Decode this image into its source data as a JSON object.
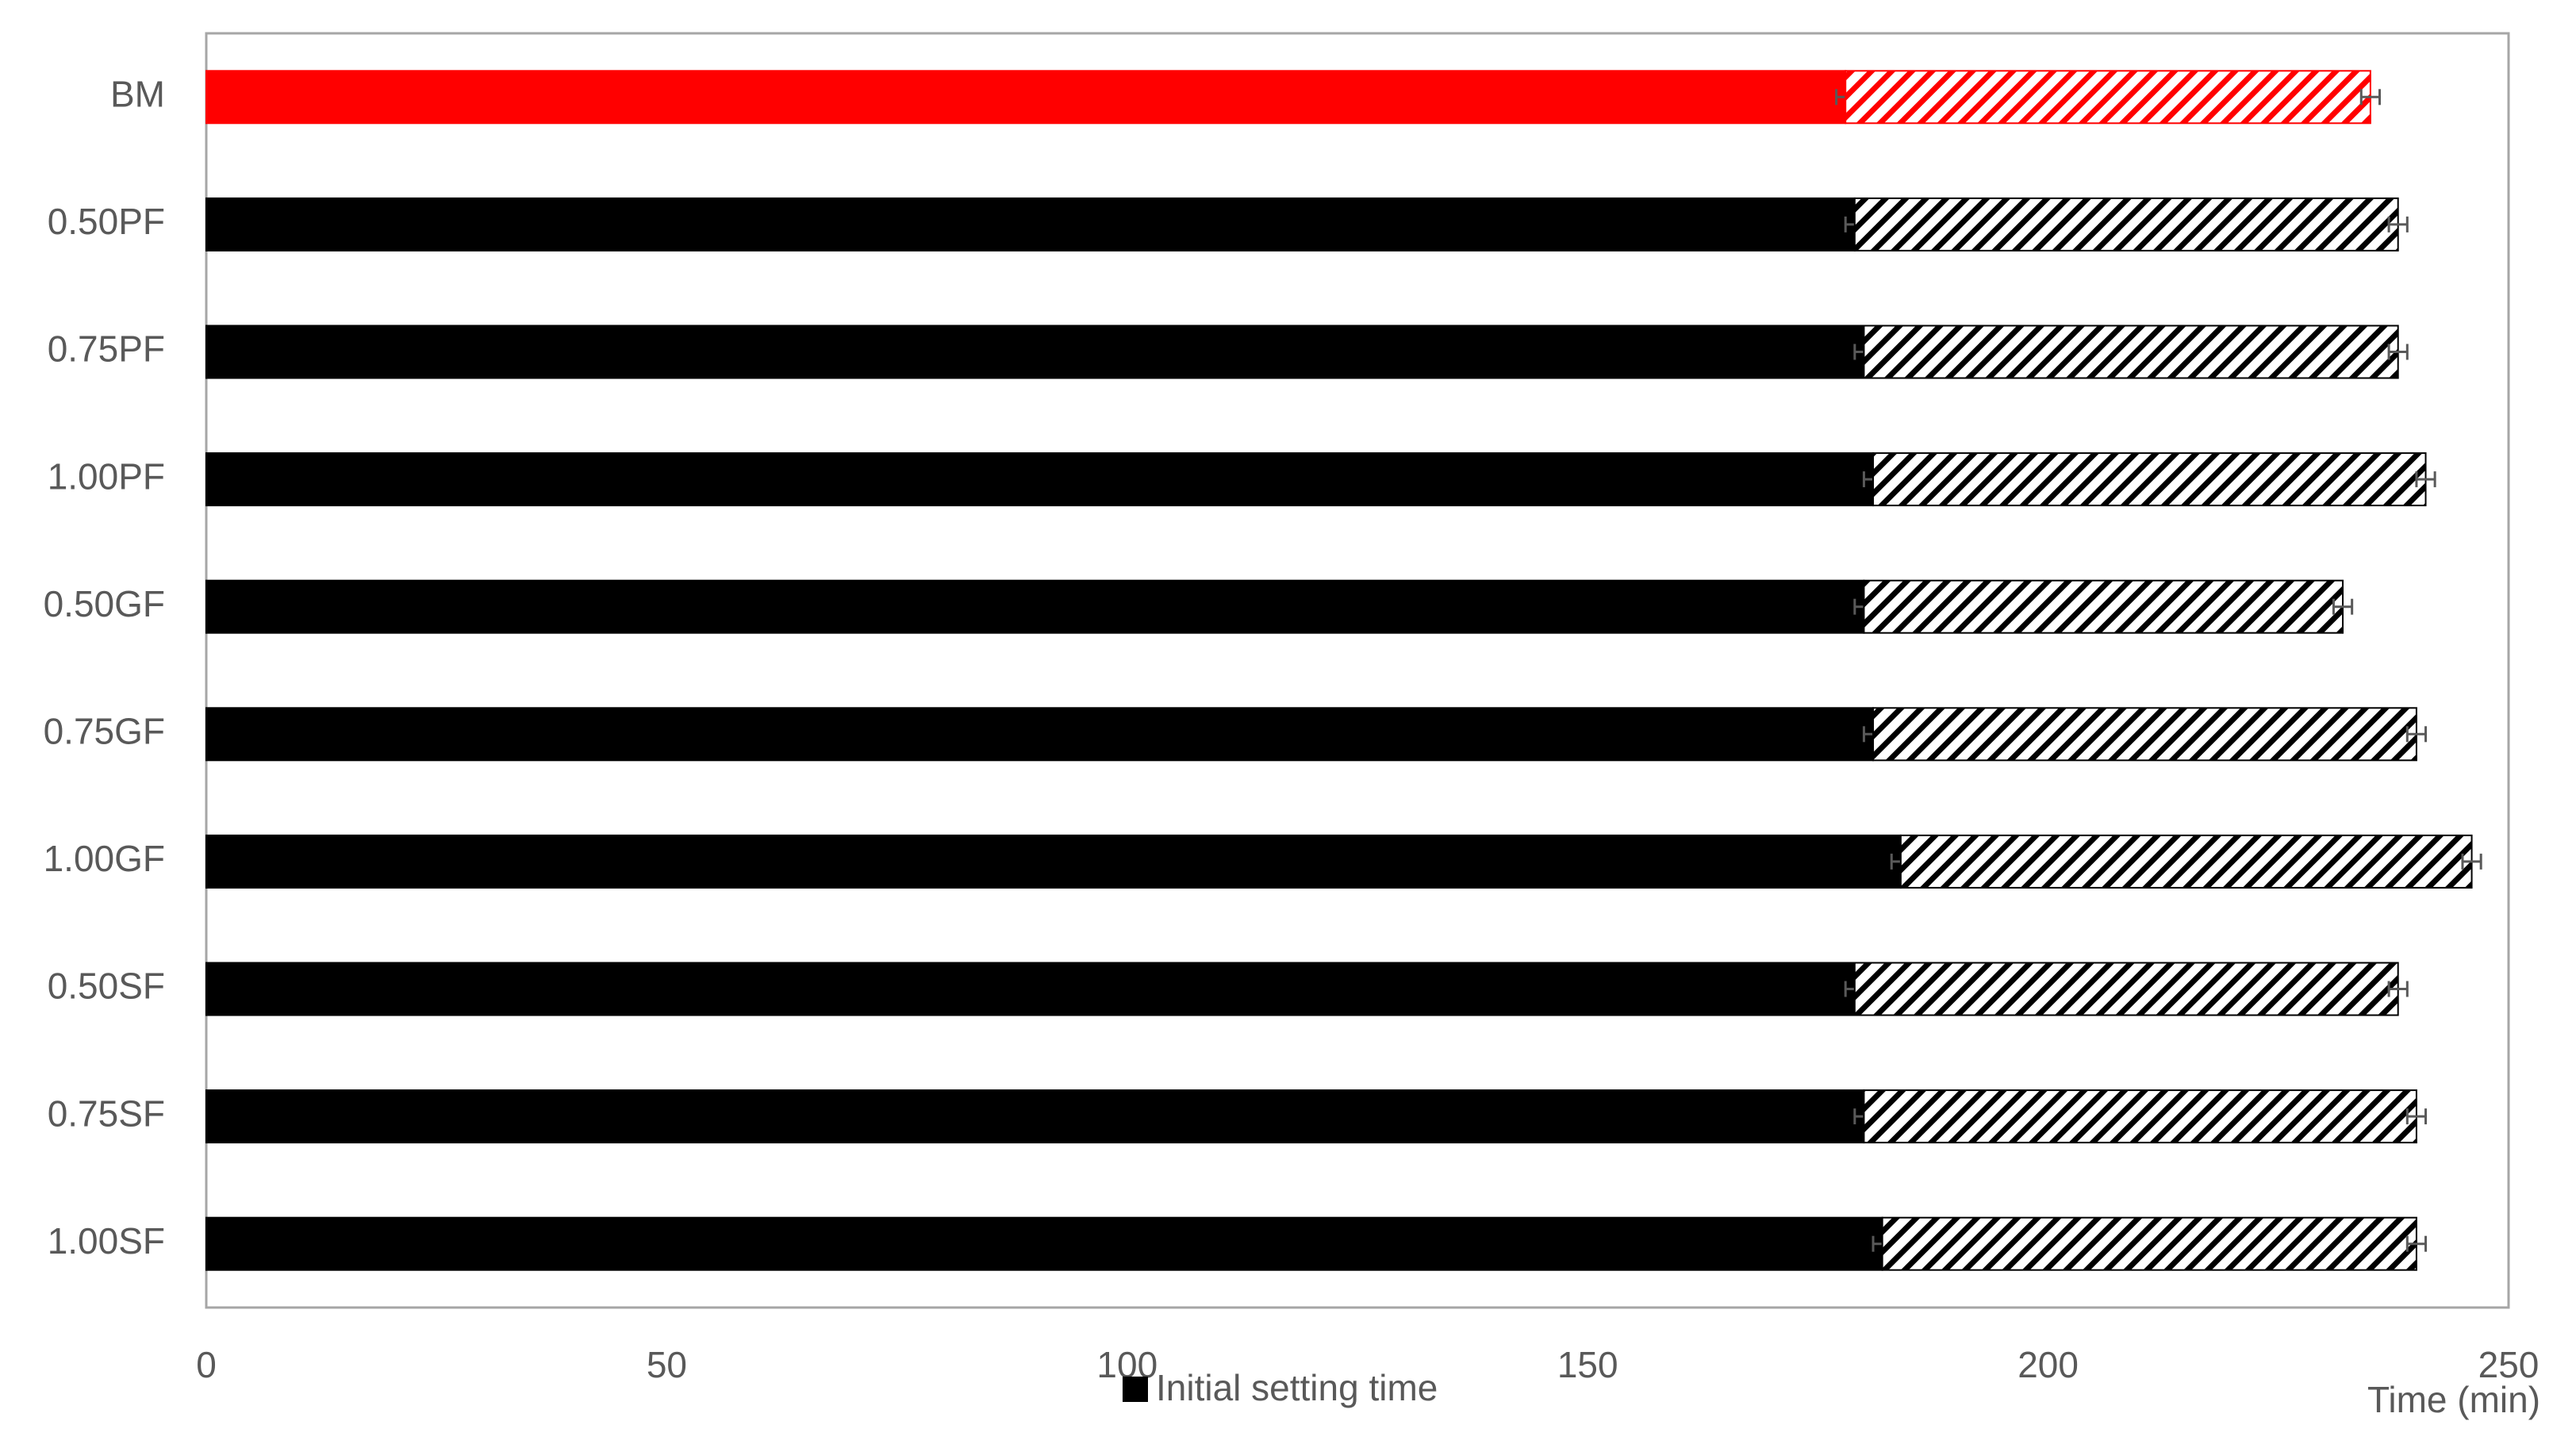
{
  "chart_data": {
    "type": "stacked-hbar",
    "categories": [
      "BM",
      "0.50PF",
      "0.75PF",
      "1.00PF",
      "0.50GF",
      "0.75GF",
      "1.00GF",
      "0.50SF",
      "0.75SF",
      "1.00SF"
    ],
    "series": [
      {
        "name": "Initial setting time",
        "color": "#000000",
        "colors": [
          "#ff0000",
          "#000000",
          "#000000",
          "#000000",
          "#000000",
          "#000000",
          "#000000",
          "#000000",
          "#000000",
          "#000000"
        ],
        "values": [
          178,
          179,
          180,
          181,
          180,
          181,
          184,
          179,
          180,
          182
        ],
        "errors": [
          1,
          1,
          1,
          1,
          1,
          1,
          1,
          1,
          1,
          1
        ]
      },
      {
        "hatch": true,
        "color": "#000000",
        "colors": [
          "#ff0000",
          "#000000",
          "#000000",
          "#000000",
          "#000000",
          "#000000",
          "#000000",
          "#000000",
          "#000000",
          "#000000"
        ],
        "values": [
          57,
          59,
          58,
          60,
          52,
          59,
          62,
          59,
          60,
          58
        ],
        "errors": [
          1,
          1,
          1,
          1,
          1,
          1,
          1,
          1,
          1,
          1
        ]
      }
    ],
    "x_label": "Time (min)",
    "xlim": [
      0,
      250
    ],
    "xticks": [
      0,
      50,
      100,
      150,
      200,
      250
    ],
    "grid": false,
    "legend": "bottom"
  }
}
